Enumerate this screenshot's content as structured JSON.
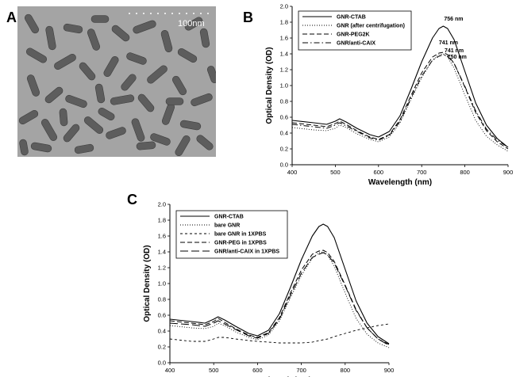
{
  "panels": {
    "a": {
      "letter": "A",
      "scale_bar": "100nm"
    },
    "b": {
      "letter": "B"
    },
    "c": {
      "letter": "C"
    }
  },
  "colors": {
    "ink": "#000000",
    "micrograph_bg": "#a4a4a4",
    "rod": "#5d5d5d"
  },
  "chart_data": [
    {
      "type": "line",
      "panel": "B",
      "xlabel": "Wavelength (nm)",
      "ylabel": "Optical Density (OD)",
      "xlim": [
        400,
        900
      ],
      "ylim": [
        0,
        2.0
      ],
      "xticks": [
        400,
        500,
        600,
        700,
        800,
        900
      ],
      "yticks": [
        0.0,
        0.2,
        0.4,
        0.6,
        0.8,
        1.0,
        1.2,
        1.4,
        1.6,
        1.8,
        2.0
      ],
      "grid": false,
      "legend": "top-left",
      "x": [
        400,
        450,
        480,
        500,
        510,
        525,
        550,
        580,
        600,
        625,
        650,
        675,
        700,
        725,
        740,
        750,
        760,
        775,
        800,
        825,
        850,
        875,
        900
      ],
      "series": [
        {
          "name": "GNR-CTAB",
          "style": "solid",
          "values": [
            0.56,
            0.53,
            0.51,
            0.55,
            0.58,
            0.54,
            0.46,
            0.38,
            0.35,
            0.42,
            0.62,
            0.95,
            1.3,
            1.6,
            1.72,
            1.75,
            1.72,
            1.58,
            1.18,
            0.78,
            0.5,
            0.33,
            0.22
          ]
        },
        {
          "name": "GNR (after centrifugation)",
          "style": "dotted",
          "values": [
            0.47,
            0.44,
            0.43,
            0.46,
            0.5,
            0.47,
            0.39,
            0.32,
            0.29,
            0.35,
            0.53,
            0.82,
            1.1,
            1.32,
            1.39,
            1.4,
            1.36,
            1.22,
            0.88,
            0.56,
            0.36,
            0.25,
            0.17
          ]
        },
        {
          "name": "GNR-PEG2K",
          "style": "dashed",
          "values": [
            0.53,
            0.5,
            0.48,
            0.52,
            0.55,
            0.51,
            0.43,
            0.35,
            0.32,
            0.38,
            0.57,
            0.87,
            1.16,
            1.36,
            1.41,
            1.42,
            1.39,
            1.28,
            0.98,
            0.66,
            0.43,
            0.29,
            0.2
          ]
        },
        {
          "name": "GNR/anti-CAIX",
          "style": "dashdot",
          "values": [
            0.51,
            0.48,
            0.46,
            0.5,
            0.53,
            0.49,
            0.42,
            0.34,
            0.31,
            0.37,
            0.55,
            0.84,
            1.12,
            1.32,
            1.37,
            1.39,
            1.37,
            1.28,
            0.99,
            0.68,
            0.45,
            0.31,
            0.22
          ]
        }
      ],
      "annotations": [
        {
          "text": "756 nm",
          "x": 774,
          "y": 1.82
        },
        {
          "text": "741 nm",
          "x": 762,
          "y": 1.52
        },
        {
          "text": "741 nm",
          "x": 775,
          "y": 1.42
        },
        {
          "text": "750 nm",
          "x": 782,
          "y": 1.34
        }
      ]
    },
    {
      "type": "line",
      "panel": "C",
      "xlabel": "Wavelength (nm)",
      "ylabel": "Optical Density (OD)",
      "xlim": [
        400,
        900
      ],
      "ylim": [
        0,
        2.0
      ],
      "xticks": [
        400,
        500,
        600,
        700,
        800,
        900
      ],
      "yticks": [
        0.0,
        0.2,
        0.4,
        0.6,
        0.8,
        1.0,
        1.2,
        1.4,
        1.6,
        1.8,
        2.0
      ],
      "grid": false,
      "legend": "top-left",
      "x": [
        400,
        450,
        480,
        500,
        510,
        525,
        550,
        580,
        600,
        625,
        650,
        675,
        700,
        725,
        740,
        750,
        760,
        775,
        800,
        825,
        850,
        875,
        900
      ],
      "series": [
        {
          "name": "GNR-CTAB",
          "style": "solid",
          "values": [
            0.55,
            0.52,
            0.5,
            0.55,
            0.58,
            0.54,
            0.46,
            0.37,
            0.34,
            0.41,
            0.62,
            0.95,
            1.3,
            1.6,
            1.72,
            1.75,
            1.72,
            1.58,
            1.18,
            0.78,
            0.5,
            0.33,
            0.24
          ]
        },
        {
          "name": "bare GNR",
          "style": "dotted",
          "values": [
            0.47,
            0.44,
            0.43,
            0.46,
            0.5,
            0.47,
            0.39,
            0.32,
            0.29,
            0.35,
            0.53,
            0.82,
            1.1,
            1.32,
            1.39,
            1.4,
            1.36,
            1.22,
            0.88,
            0.56,
            0.36,
            0.25,
            0.19
          ]
        },
        {
          "name": "bare GNR in 1XPBS",
          "style": "shortdash",
          "values": [
            0.3,
            0.27,
            0.27,
            0.3,
            0.32,
            0.32,
            0.3,
            0.28,
            0.27,
            0.26,
            0.25,
            0.25,
            0.25,
            0.26,
            0.28,
            0.29,
            0.3,
            0.33,
            0.37,
            0.41,
            0.44,
            0.47,
            0.49
          ]
        },
        {
          "name": "GNR-PEG in 1XPBS",
          "style": "dashed",
          "values": [
            0.53,
            0.5,
            0.48,
            0.52,
            0.56,
            0.51,
            0.43,
            0.35,
            0.32,
            0.38,
            0.57,
            0.88,
            1.17,
            1.37,
            1.41,
            1.42,
            1.39,
            1.28,
            0.98,
            0.67,
            0.44,
            0.3,
            0.23
          ]
        },
        {
          "name": "GNR/anti-CAIX in 1XPBS",
          "style": "longdash",
          "values": [
            0.5,
            0.48,
            0.46,
            0.5,
            0.53,
            0.49,
            0.42,
            0.34,
            0.31,
            0.37,
            0.55,
            0.85,
            1.13,
            1.33,
            1.37,
            1.39,
            1.36,
            1.26,
            0.97,
            0.66,
            0.44,
            0.3,
            0.22
          ]
        }
      ]
    }
  ]
}
